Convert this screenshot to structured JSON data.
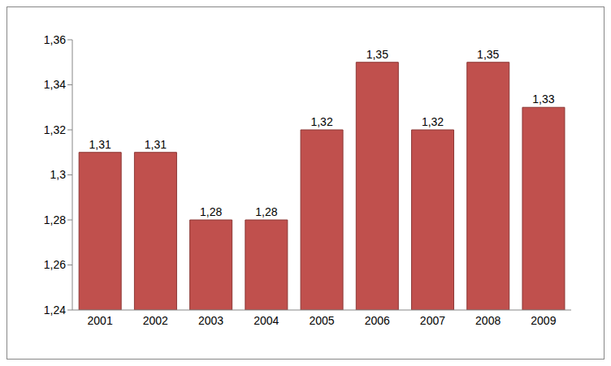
{
  "chart_data": {
    "type": "bar",
    "categories": [
      "2001",
      "2002",
      "2003",
      "2004",
      "2005",
      "2006",
      "2007",
      "2008",
      "2009"
    ],
    "values": [
      1.31,
      1.31,
      1.28,
      1.28,
      1.32,
      1.35,
      1.32,
      1.35,
      1.33
    ],
    "value_labels": [
      "1,31",
      "1,31",
      "1,28",
      "1,28",
      "1,32",
      "1,35",
      "1,32",
      "1,35",
      "1,33"
    ],
    "color": "#c0504d",
    "ylim": [
      1.24,
      1.36
    ],
    "yticks": [
      {
        "value": 1.24,
        "label": "1,24"
      },
      {
        "value": 1.26,
        "label": "1,26"
      },
      {
        "value": 1.28,
        "label": "1,28"
      },
      {
        "value": 1.3,
        "label": "1,3"
      },
      {
        "value": 1.32,
        "label": "1,32"
      },
      {
        "value": 1.34,
        "label": "1,34"
      },
      {
        "value": 1.36,
        "label": "1,36"
      }
    ],
    "grid": false,
    "data_labels": true
  }
}
